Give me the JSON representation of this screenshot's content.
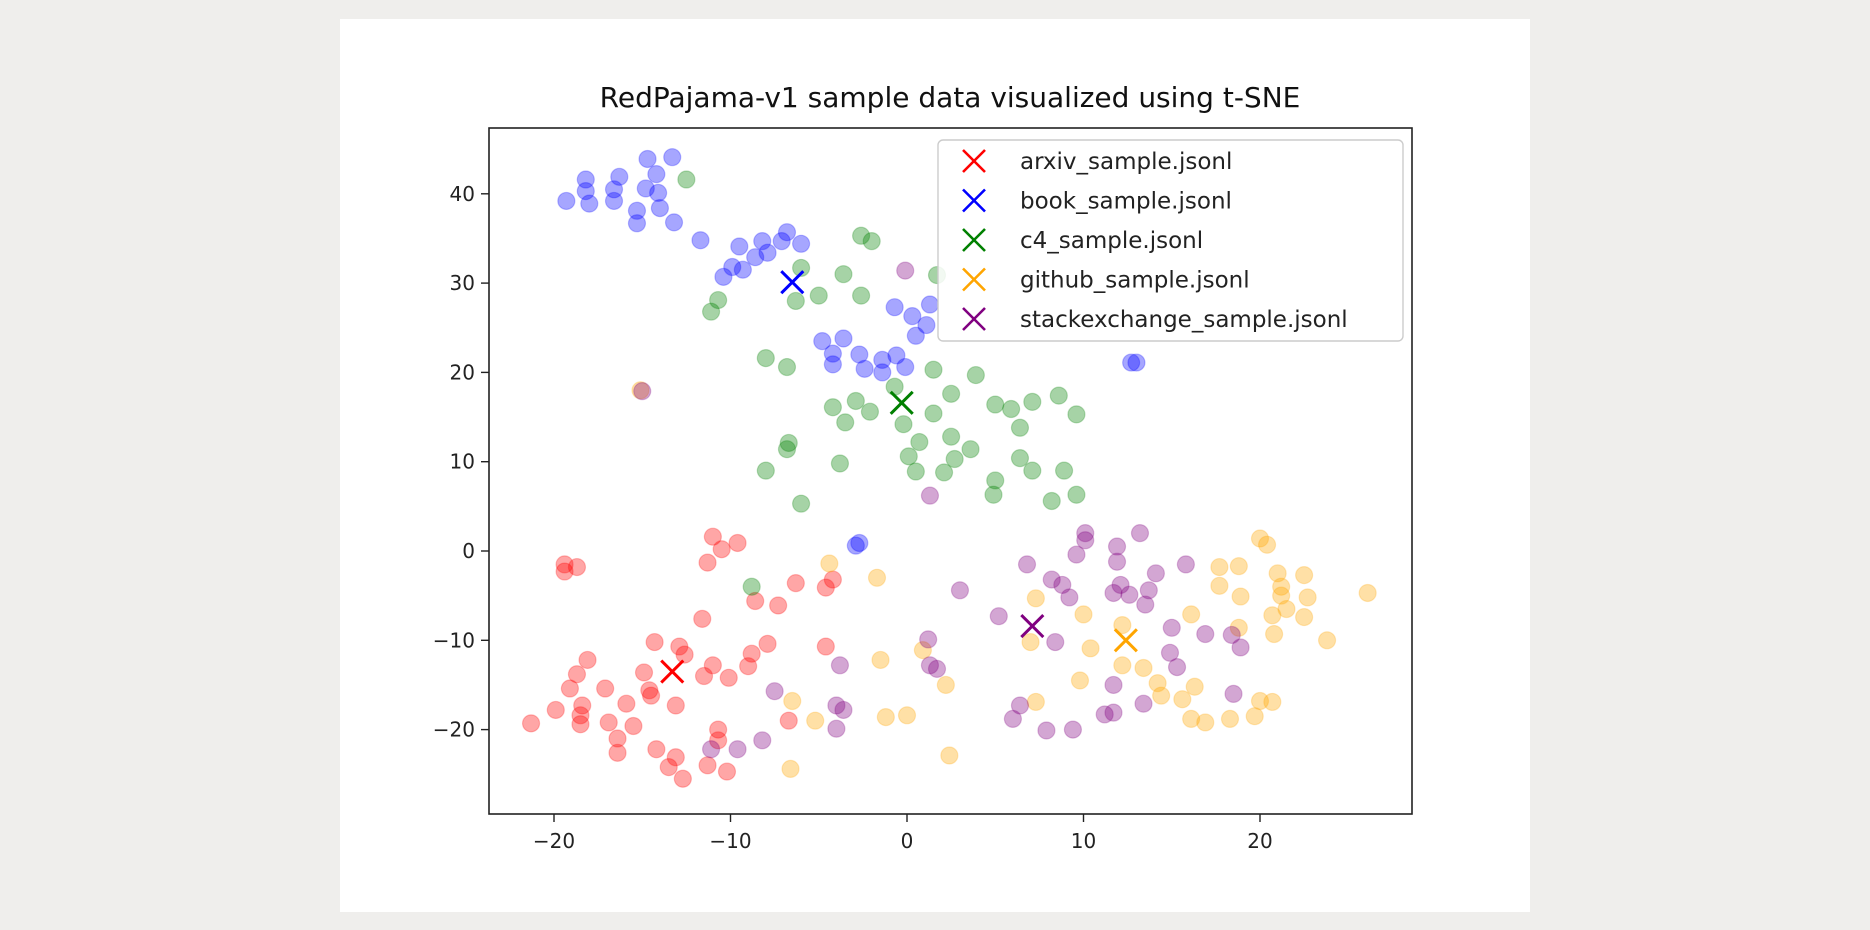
{
  "chart_data": {
    "type": "scatter",
    "title": "RedPajama-v1 sample data visualized using t-SNE",
    "xlabel": "",
    "ylabel": "",
    "xlim": [
      -23.5,
      28.5
    ],
    "ylim": [
      -29.5,
      47.5
    ],
    "xticks": [
      -20,
      -10,
      0,
      10,
      20
    ],
    "xtick_labels": [
      "−20",
      "−10",
      "0",
      "10",
      "20"
    ],
    "yticks": [
      -20,
      -10,
      0,
      10,
      20,
      30,
      40
    ],
    "ytick_labels": [
      "−20",
      "−10",
      "0",
      "10",
      "20",
      "30",
      "40"
    ],
    "grid": false,
    "legend_position": "upper right",
    "point_alpha": 0.35,
    "series": [
      {
        "name": "arxiv_sample.jsonl",
        "color": "#ff0000",
        "centroid": [
          -13.3,
          -13.5
        ],
        "points": [
          [
            -19.4,
            -1.5
          ],
          [
            -19.4,
            -2.3
          ],
          [
            -18.7,
            -1.8
          ],
          [
            -11.0,
            1.6
          ],
          [
            -10.5,
            0.2
          ],
          [
            -11.3,
            -1.3
          ],
          [
            -9.6,
            0.9
          ],
          [
            -21.3,
            -19.3
          ],
          [
            -19.9,
            -17.8
          ],
          [
            -18.4,
            -17.3
          ],
          [
            -18.5,
            -18.4
          ],
          [
            -18.5,
            -19.4
          ],
          [
            -18.1,
            -12.2
          ],
          [
            -18.7,
            -13.8
          ],
          [
            -19.1,
            -15.4
          ],
          [
            -17.1,
            -15.4
          ],
          [
            -16.9,
            -19.2
          ],
          [
            -16.4,
            -21.0
          ],
          [
            -16.4,
            -22.6
          ],
          [
            -15.9,
            -17.1
          ],
          [
            -15.5,
            -19.6
          ],
          [
            -14.2,
            -22.2
          ],
          [
            -13.5,
            -24.2
          ],
          [
            -12.7,
            -25.5
          ],
          [
            -13.1,
            -23.1
          ],
          [
            -13.1,
            -17.3
          ],
          [
            -14.9,
            -13.6
          ],
          [
            -14.6,
            -15.6
          ],
          [
            -14.5,
            -16.2
          ],
          [
            -14.3,
            -10.2
          ],
          [
            -12.9,
            -10.7
          ],
          [
            -12.6,
            -11.6
          ],
          [
            -11.6,
            -7.6
          ],
          [
            -11.5,
            -14.0
          ],
          [
            -11.3,
            -24.0
          ],
          [
            -11.0,
            -12.8
          ],
          [
            -10.7,
            -20.0
          ],
          [
            -10.7,
            -21.2
          ],
          [
            -10.2,
            -24.7
          ],
          [
            -10.1,
            -14.2
          ],
          [
            -9.0,
            -12.9
          ],
          [
            -8.8,
            -11.5
          ],
          [
            -8.6,
            -5.6
          ],
          [
            -7.9,
            -10.4
          ],
          [
            -7.3,
            -6.1
          ],
          [
            -6.3,
            -3.6
          ],
          [
            -4.6,
            -4.1
          ],
          [
            -4.2,
            -3.2
          ],
          [
            -6.7,
            -19.0
          ],
          [
            -4.6,
            -10.7
          ]
        ]
      },
      {
        "name": "book_sample.jsonl",
        "color": "#0000ff",
        "centroid": [
          -6.5,
          30.1
        ],
        "points": [
          [
            -19.3,
            39.2
          ],
          [
            -18.2,
            41.6
          ],
          [
            -18.2,
            40.3
          ],
          [
            -18.0,
            38.9
          ],
          [
            -16.6,
            40.5
          ],
          [
            -16.6,
            39.2
          ],
          [
            -16.3,
            41.9
          ],
          [
            -15.3,
            38.1
          ],
          [
            -15.3,
            36.7
          ],
          [
            -14.8,
            40.6
          ],
          [
            -14.7,
            43.9
          ],
          [
            -14.2,
            42.2
          ],
          [
            -14.1,
            40.1
          ],
          [
            -14.0,
            38.4
          ],
          [
            -13.3,
            44.1
          ],
          [
            -13.2,
            36.8
          ],
          [
            -11.7,
            34.8
          ],
          [
            -10.4,
            30.7
          ],
          [
            -9.9,
            31.8
          ],
          [
            -9.5,
            34.1
          ],
          [
            -9.3,
            31.5
          ],
          [
            -8.6,
            32.9
          ],
          [
            -8.2,
            34.7
          ],
          [
            -7.9,
            33.4
          ],
          [
            -7.1,
            34.7
          ],
          [
            -6.8,
            35.7
          ],
          [
            -6.0,
            34.4
          ],
          [
            -4.8,
            23.5
          ],
          [
            -4.2,
            22.1
          ],
          [
            -4.2,
            20.9
          ],
          [
            -3.6,
            23.8
          ],
          [
            -2.7,
            22.0
          ],
          [
            -2.4,
            20.4
          ],
          [
            -1.4,
            20.0
          ],
          [
            -1.4,
            21.4
          ],
          [
            -0.6,
            21.9
          ],
          [
            -0.7,
            27.3
          ],
          [
            0.3,
            26.3
          ],
          [
            0.5,
            24.1
          ],
          [
            1.1,
            25.3
          ],
          [
            1.3,
            27.6
          ],
          [
            -0.1,
            20.6
          ],
          [
            12.7,
            21.1
          ],
          [
            13.0,
            21.1
          ],
          [
            -2.9,
            0.6
          ],
          [
            -2.7,
            0.9
          ]
        ]
      },
      {
        "name": "c4_sample.jsonl",
        "color": "#008000",
        "centroid": [
          -0.3,
          16.6
        ],
        "points": [
          [
            -12.5,
            41.6
          ],
          [
            -6.0,
            31.7
          ],
          [
            -6.3,
            28.0
          ],
          [
            -5.0,
            28.6
          ],
          [
            -11.1,
            26.8
          ],
          [
            -10.7,
            28.1
          ],
          [
            -2.6,
            35.3
          ],
          [
            -2.0,
            34.7
          ],
          [
            -3.6,
            31.0
          ],
          [
            -2.6,
            28.6
          ],
          [
            1.7,
            30.9
          ],
          [
            -8.0,
            21.6
          ],
          [
            -6.8,
            20.6
          ],
          [
            -4.2,
            16.1
          ],
          [
            -3.5,
            14.4
          ],
          [
            -2.9,
            16.8
          ],
          [
            -2.1,
            15.6
          ],
          [
            -0.7,
            18.4
          ],
          [
            -0.2,
            14.2
          ],
          [
            1.5,
            15.4
          ],
          [
            1.5,
            20.3
          ],
          [
            2.5,
            17.6
          ],
          [
            3.9,
            19.7
          ],
          [
            5.0,
            16.4
          ],
          [
            5.9,
            15.9
          ],
          [
            6.4,
            13.8
          ],
          [
            7.1,
            16.7
          ],
          [
            8.6,
            17.4
          ],
          [
            9.6,
            15.3
          ],
          [
            -6.8,
            11.4
          ],
          [
            -6.7,
            12.1
          ],
          [
            -3.8,
            9.8
          ],
          [
            0.1,
            10.6
          ],
          [
            0.7,
            12.2
          ],
          [
            2.5,
            12.8
          ],
          [
            3.6,
            11.4
          ],
          [
            0.5,
            8.9
          ],
          [
            2.1,
            8.8
          ],
          [
            2.7,
            10.3
          ],
          [
            4.9,
            6.3
          ],
          [
            5.0,
            7.9
          ],
          [
            6.4,
            10.4
          ],
          [
            7.1,
            9.0
          ],
          [
            8.2,
            5.6
          ],
          [
            8.9,
            9.0
          ],
          [
            9.6,
            6.3
          ],
          [
            -8.0,
            9.0
          ],
          [
            -6.0,
            5.3
          ],
          [
            -8.8,
            -4.0
          ]
        ]
      },
      {
        "name": "github_sample.jsonl",
        "color": "#ffa500",
        "centroid": [
          12.4,
          -10.0
        ],
        "points": [
          [
            -15.1,
            18.0
          ],
          [
            -4.4,
            -1.4
          ],
          [
            -1.7,
            -3.0
          ],
          [
            -6.5,
            -16.8
          ],
          [
            -5.2,
            -19.0
          ],
          [
            -6.6,
            -24.4
          ],
          [
            -1.5,
            -12.2
          ],
          [
            -1.2,
            -18.6
          ],
          [
            0.0,
            -18.4
          ],
          [
            0.9,
            -11.1
          ],
          [
            2.2,
            -15.0
          ],
          [
            2.4,
            -22.9
          ],
          [
            7.3,
            -5.3
          ],
          [
            7.0,
            -10.2
          ],
          [
            7.3,
            -16.9
          ],
          [
            10.0,
            -7.1
          ],
          [
            10.4,
            -10.9
          ],
          [
            9.8,
            -14.5
          ],
          [
            12.2,
            -8.3
          ],
          [
            12.2,
            -12.8
          ],
          [
            13.4,
            -13.1
          ],
          [
            14.2,
            -14.8
          ],
          [
            14.4,
            -16.2
          ],
          [
            15.6,
            -16.6
          ],
          [
            16.1,
            -7.1
          ],
          [
            16.3,
            -15.2
          ],
          [
            16.1,
            -18.8
          ],
          [
            16.9,
            -19.2
          ],
          [
            17.7,
            -1.8
          ],
          [
            17.7,
            -3.9
          ],
          [
            18.8,
            -1.7
          ],
          [
            18.9,
            -5.1
          ],
          [
            18.8,
            -8.6
          ],
          [
            18.3,
            -18.8
          ],
          [
            19.7,
            -18.5
          ],
          [
            20.0,
            -16.8
          ],
          [
            20.7,
            -16.9
          ],
          [
            20.0,
            1.4
          ],
          [
            20.4,
            0.7
          ],
          [
            21.0,
            -2.5
          ],
          [
            21.2,
            -4.0
          ],
          [
            21.2,
            -5.0
          ],
          [
            21.5,
            -6.5
          ],
          [
            20.7,
            -7.2
          ],
          [
            20.8,
            -9.3
          ],
          [
            22.5,
            -2.7
          ],
          [
            22.7,
            -5.2
          ],
          [
            22.5,
            -7.4
          ],
          [
            23.8,
            -10.0
          ],
          [
            26.1,
            -4.7
          ]
        ]
      },
      {
        "name": "stackexchange_sample.jsonl",
        "color": "#800080",
        "centroid": [
          7.1,
          -8.4
        ],
        "points": [
          [
            -15.0,
            17.9
          ],
          [
            -0.1,
            31.4
          ],
          [
            1.3,
            6.2
          ],
          [
            -7.5,
            -15.7
          ],
          [
            -8.2,
            -21.2
          ],
          [
            -9.6,
            -22.2
          ],
          [
            -11.1,
            -22.2
          ],
          [
            -3.8,
            -12.8
          ],
          [
            -4.0,
            -17.3
          ],
          [
            -3.6,
            -17.8
          ],
          [
            -4.0,
            -19.9
          ],
          [
            1.2,
            -9.9
          ],
          [
            1.3,
            -12.8
          ],
          [
            1.7,
            -13.2
          ],
          [
            3.0,
            -4.4
          ],
          [
            5.2,
            -7.3
          ],
          [
            6.0,
            -18.8
          ],
          [
            6.4,
            -17.3
          ],
          [
            6.8,
            -1.5
          ],
          [
            8.2,
            -3.2
          ],
          [
            8.4,
            -10.2
          ],
          [
            8.8,
            -3.8
          ],
          [
            9.2,
            -5.2
          ],
          [
            9.6,
            -0.4
          ],
          [
            7.9,
            -20.1
          ],
          [
            9.4,
            -20.0
          ],
          [
            10.1,
            2.0
          ],
          [
            10.1,
            1.2
          ],
          [
            11.2,
            -18.3
          ],
          [
            11.7,
            -15.0
          ],
          [
            11.7,
            -18.1
          ],
          [
            11.9,
            0.5
          ],
          [
            11.9,
            -1.2
          ],
          [
            11.7,
            -4.7
          ],
          [
            12.1,
            -3.8
          ],
          [
            12.6,
            -4.9
          ],
          [
            13.2,
            2.0
          ],
          [
            13.4,
            -17.1
          ],
          [
            13.7,
            -4.4
          ],
          [
            13.5,
            -6.0
          ],
          [
            14.1,
            -2.5
          ],
          [
            15.0,
            -8.6
          ],
          [
            14.9,
            -11.4
          ],
          [
            15.3,
            -13.0
          ],
          [
            15.8,
            -1.5
          ],
          [
            16.9,
            -9.3
          ],
          [
            18.4,
            -9.4
          ],
          [
            18.5,
            -16.0
          ],
          [
            18.9,
            -10.8
          ]
        ]
      }
    ]
  }
}
